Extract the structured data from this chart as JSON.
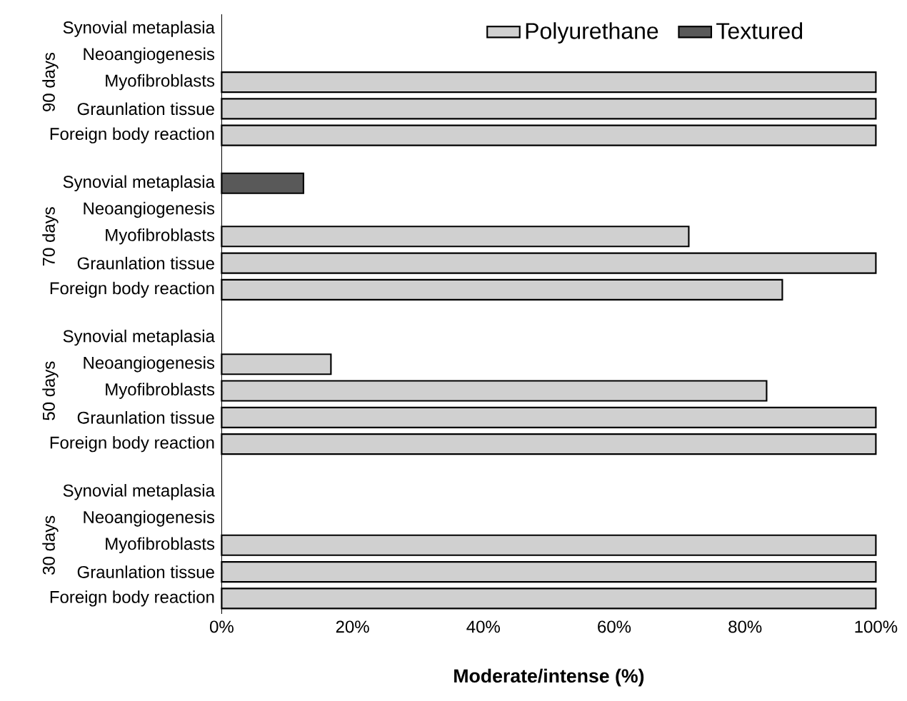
{
  "chart_data": {
    "type": "bar",
    "orientation": "horizontal",
    "xlabel": "Moderate/intense (%)",
    "categories": [
      "Synovial metaplasia",
      "Neoangiogenesis",
      "Myofibroblasts",
      "Graunlation tissue",
      "Foreign body reaction",
      "Synovial metaplasia",
      "Neoangiogenesis",
      "Myofibroblasts",
      "Graunlation tissue",
      "Foreign body reaction",
      "Synovial metaplasia",
      "Neoangiogenesis",
      "Myofibroblasts",
      "Graunlation tissue",
      "Foreign body reaction",
      "Synovial metaplasia",
      "Neoangiogenesis",
      "Myofibroblasts",
      "Graunlation tissue",
      "Foreign body reaction"
    ],
    "annotations": [
      "90 days",
      "70 days",
      "50 days",
      "30 days"
    ],
    "series": [
      {
        "name": "Polyurethane",
        "color": "#d0d0d0",
        "values": [
          null,
          null,
          100,
          100,
          100,
          null,
          null,
          71.4,
          100,
          85.7,
          null,
          16.7,
          83.3,
          100,
          100,
          null,
          null,
          100,
          100,
          100
        ]
      },
      {
        "name": "Textured",
        "color": "#595959",
        "values": [
          null,
          null,
          null,
          null,
          null,
          12.5,
          null,
          null,
          null,
          null,
          null,
          null,
          null,
          null,
          null,
          null,
          null,
          null,
          null,
          null
        ]
      }
    ],
    "xlim": [
      0,
      100
    ],
    "xticks": [
      {
        "value": 0,
        "label": "0%"
      },
      {
        "value": 20,
        "label": "20%"
      },
      {
        "value": 40,
        "label": "40%"
      },
      {
        "value": 60,
        "label": "60%"
      },
      {
        "value": 80,
        "label": "80%"
      },
      {
        "value": 100,
        "label": "100%"
      }
    ],
    "legend": "top",
    "grid": false
  }
}
